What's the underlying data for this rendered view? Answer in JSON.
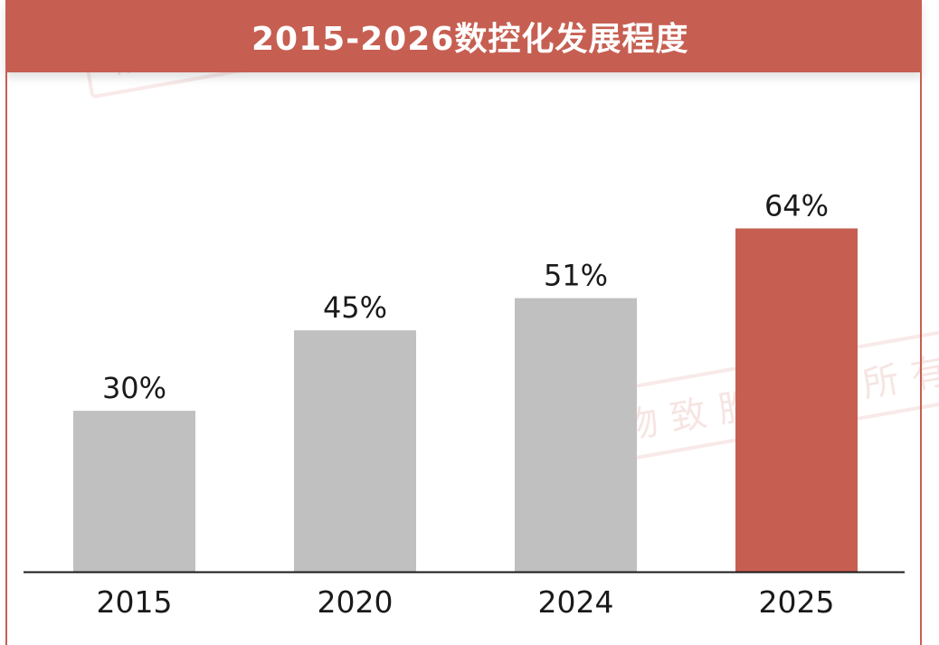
{
  "watermark": "格物致胜版权所有",
  "chart_data": {
    "type": "bar",
    "title": "2015-2026数控化发展程度",
    "categories": [
      "2015",
      "2020",
      "2024",
      "2025"
    ],
    "values": [
      30,
      45,
      51,
      64
    ],
    "data_labels": [
      "30%",
      "45%",
      "51%",
      "64%"
    ],
    "unit": "%",
    "ylim": [
      0,
      100
    ],
    "grid": false,
    "legend": "none",
    "colors": {
      "default_bar": "#c0c0c0",
      "highlight_bar": "#c65f52",
      "axis": "#1a1a1a",
      "header": "#c65f52"
    },
    "highlight_category": "2025"
  }
}
